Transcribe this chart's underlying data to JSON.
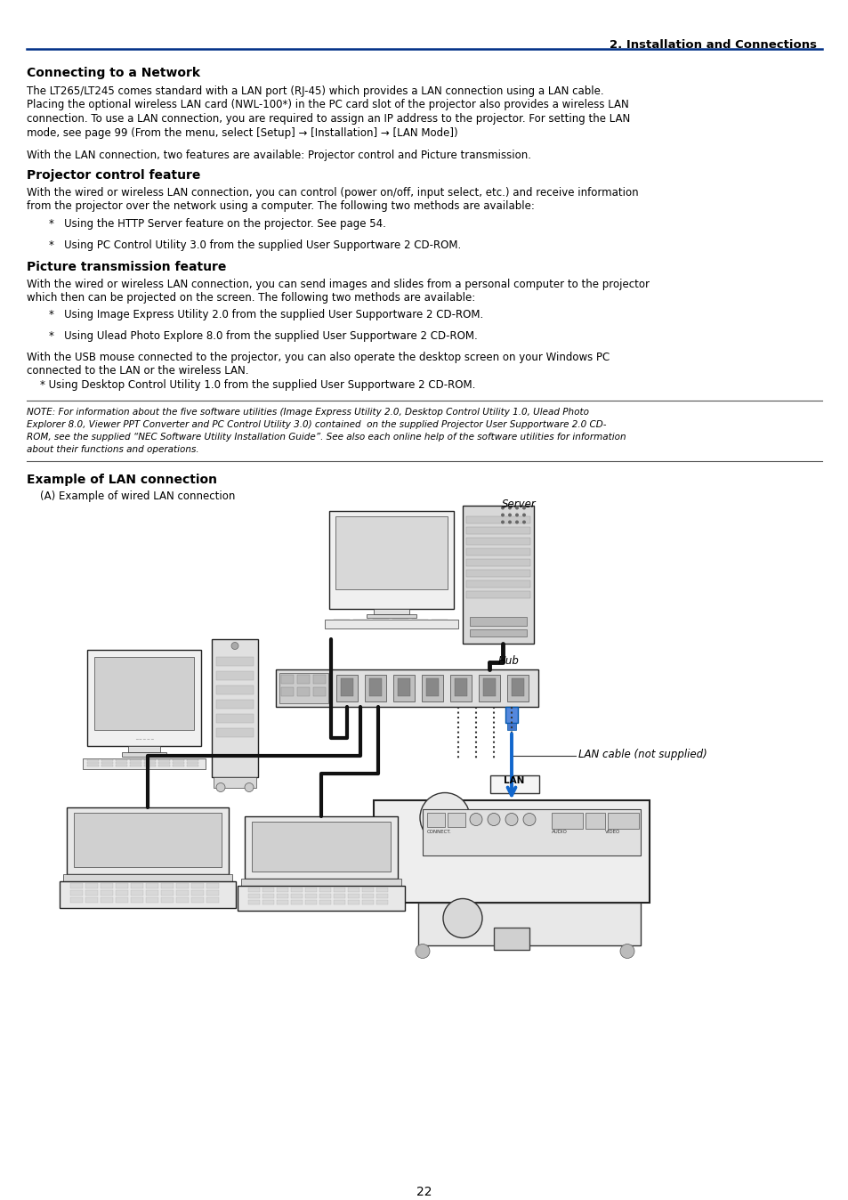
{
  "page_title": "2. Installation and Connections",
  "section1_title": "Connecting to a Network",
  "s1_body_lines": [
    "The LT265/LT245 comes standard with a LAN port (RJ-45) which provides a LAN connection using a LAN cable.",
    "Placing the optional wireless LAN card (NWL-100*) in the PC card slot of the projector also provides a wireless LAN",
    "connection. To use a LAN connection, you are required to assign an IP address to the projector. For setting the LAN",
    "mode, see page 99 (From the menu, select [Setup] → [Installation] → [LAN Mode])"
  ],
  "s1_body2": "With the LAN connection, two features are available: Projector control and Picture transmission.",
  "section2_title": "Projector control feature",
  "s2_body_lines": [
    "With the wired or wireless LAN connection, you can control (power on/off, input select, etc.) and receive information",
    "from the projector over the network using a computer. The following two methods are available:"
  ],
  "s2_b1": "Using the HTTP Server feature on the projector. See page 54.",
  "s2_b2": "Using PC Control Utility 3.0 from the supplied User Supportware 2 CD-ROM.",
  "section3_title": "Picture transmission feature",
  "s3_body_lines": [
    "With the wired or wireless LAN connection, you can send images and slides from a personal computer to the projector",
    "which then can be projected on the screen. The following two methods are available:"
  ],
  "s3_b1": "Using Image Express Utility 2.0 from the supplied User Supportware 2 CD-ROM.",
  "s3_b2": "Using Ulead Photo Explore 8.0 from the supplied User Supportware 2 CD-ROM.",
  "s4_line1": "With the USB mouse connected to the projector, you can also operate the desktop screen on your Windows PC",
  "s4_line2": "connected to the LAN or the wireless LAN.",
  "s4_line3": "    * Using Desktop Control Utility 1.0 from the supplied User Supportware 2 CD-ROM.",
  "note_lines": [
    "NOTE: For information about the five software utilities (Image Express Utility 2.0, Desktop Control Utility 1.0, Ulead Photo",
    "Explorer 8.0, Viewer PPT Converter and PC Control Utility 3.0) contained  on the supplied Projector User Supportware 2.0 CD-",
    "ROM, see the supplied “NEC Software Utility Installation Guide”. See also each online help of the software utilities for information",
    "about their functions and operations."
  ],
  "section5_title": "Example of LAN connection",
  "section5_subtitle": "    (A) Example of wired LAN connection",
  "label_server": "Server",
  "label_hub": "Hub",
  "label_lan_cable": "LAN cable (not supplied)",
  "label_lan": "LAN",
  "page_number": "22",
  "bg_color": "#ffffff",
  "text_color": "#000000",
  "blue_color": "#003087",
  "link_color": "#0000cc",
  "cable_blue": "#1166cc"
}
